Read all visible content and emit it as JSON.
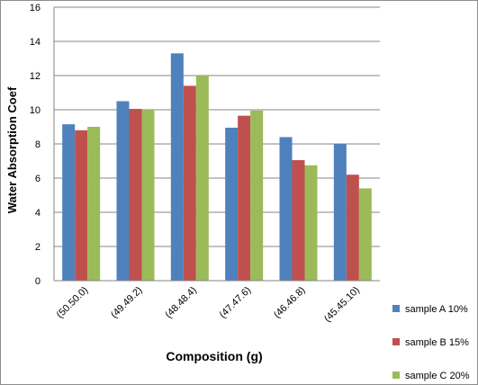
{
  "chart_data": {
    "type": "bar",
    "xlabel": "Composition (g)",
    "ylabel": "Water Absorption Coef",
    "ylim": [
      0,
      16
    ],
    "yticks": [
      0,
      2,
      4,
      6,
      8,
      10,
      12,
      14,
      16
    ],
    "grid": true,
    "legend_position": "right-bottom",
    "categories": [
      "(50.50.0)",
      "(49.49.2)",
      "(48.48.4)",
      "(47.47.6)",
      "(46.46.8)",
      "(45.45.10)"
    ],
    "series": [
      {
        "name": "sample A 10%",
        "color": "#4f81bd",
        "values": [
          9.15,
          10.5,
          13.3,
          8.95,
          8.4,
          8.0
        ]
      },
      {
        "name": "sample B 15%",
        "color": "#c0504d",
        "values": [
          8.8,
          10.05,
          11.4,
          9.65,
          7.05,
          6.2
        ]
      },
      {
        "name": "sample C 20%",
        "color": "#9bbb59",
        "values": [
          9.0,
          10.0,
          12.0,
          9.95,
          6.75,
          5.4
        ]
      }
    ]
  }
}
